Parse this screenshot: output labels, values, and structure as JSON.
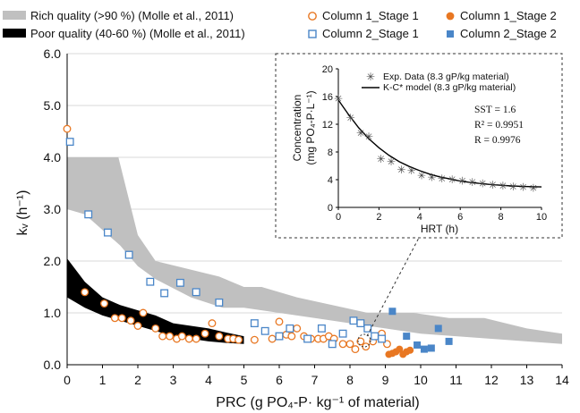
{
  "chart_data": [
    {
      "type": "scatter",
      "xlabel": "PRC (g PO₄-P· kg⁻¹ of material)",
      "ylabel": "kᵥ (h⁻¹)",
      "xlim": [
        0,
        14
      ],
      "ylim": [
        0,
        6
      ],
      "xticks": [
        "0",
        "1",
        "2",
        "3",
        "4",
        "5",
        "6",
        "7",
        "8",
        "9",
        "10",
        "11",
        "12",
        "13",
        "14"
      ],
      "yticks": [
        "0.0",
        "1.0",
        "2.0",
        "3.0",
        "4.0",
        "5.0",
        "6.0"
      ],
      "legend_placement": "top",
      "bands": [
        {
          "name": "Rich quality (>90 %) (Molle et al., 2011)",
          "color": "#c0c0c0",
          "upper": [
            [
              0,
              4.0
            ],
            [
              1.45,
              4.0
            ],
            [
              2.0,
              2.5
            ],
            [
              2.5,
              2.0
            ],
            [
              4.3,
              1.7
            ],
            [
              5.0,
              1.5
            ],
            [
              5.5,
              1.5
            ],
            [
              6.5,
              1.3
            ],
            [
              8.5,
              1.0
            ],
            [
              9.8,
              1.0
            ],
            [
              10.8,
              0.9
            ],
            [
              11.8,
              0.9
            ],
            [
              13.0,
              0.7
            ],
            [
              14.0,
              0.6
            ]
          ],
          "lower": [
            [
              14.0,
              0.4
            ],
            [
              13.0,
              0.45
            ],
            [
              12.0,
              0.5
            ],
            [
              11.0,
              0.55
            ],
            [
              10.0,
              0.6
            ],
            [
              9.0,
              0.7
            ],
            [
              8.0,
              0.8
            ],
            [
              7.0,
              0.9
            ],
            [
              6.0,
              1.0
            ],
            [
              5.0,
              1.1
            ],
            [
              4.4,
              1.1
            ],
            [
              3.5,
              1.3
            ],
            [
              2.5,
              1.65
            ],
            [
              2.0,
              1.9
            ],
            [
              1.5,
              2.3
            ],
            [
              1.0,
              2.6
            ],
            [
              0.5,
              2.9
            ],
            [
              0,
              3.0
            ]
          ]
        },
        {
          "name": "Poor quality (40-60 %) (Molle et al., 2011)",
          "color": "#000000",
          "upper": [
            [
              0,
              2.05
            ],
            [
              0.5,
              1.6
            ],
            [
              1.0,
              1.3
            ],
            [
              1.5,
              1.15
            ],
            [
              2.0,
              1.05
            ],
            [
              2.5,
              0.95
            ],
            [
              3.0,
              0.8
            ],
            [
              3.5,
              0.75
            ],
            [
              4.0,
              0.7
            ],
            [
              4.5,
              0.62
            ],
            [
              5.0,
              0.55
            ]
          ],
          "lower": [
            [
              5.0,
              0.4
            ],
            [
              4.5,
              0.42
            ],
            [
              4.0,
              0.45
            ],
            [
              3.5,
              0.5
            ],
            [
              3.0,
              0.55
            ],
            [
              2.5,
              0.65
            ],
            [
              2.0,
              0.75
            ],
            [
              1.5,
              0.85
            ],
            [
              1.0,
              0.95
            ],
            [
              0.5,
              1.1
            ],
            [
              0,
              1.3
            ]
          ]
        }
      ],
      "series": [
        {
          "name": "Column 1_Stage 1",
          "marker": "circle-open",
          "color": "#e87722",
          "x": [
            0.0,
            0.5,
            1.05,
            1.35,
            1.55,
            1.8,
            2.0,
            2.15,
            2.5,
            2.7,
            2.9,
            3.1,
            3.25,
            3.45,
            3.65,
            3.9,
            4.1,
            4.3,
            4.55,
            4.7,
            4.85,
            5.3,
            5.8,
            6.0,
            6.2,
            6.35,
            6.5,
            6.7,
            6.9,
            7.1,
            7.25,
            7.4,
            7.55,
            7.8,
            8.0,
            8.15,
            8.3,
            8.45,
            8.65,
            8.9,
            9.05
          ],
          "y": [
            4.55,
            1.4,
            1.18,
            0.9,
            0.9,
            0.85,
            0.75,
            1.0,
            0.7,
            0.55,
            0.55,
            0.5,
            0.55,
            0.5,
            0.5,
            0.6,
            0.8,
            0.55,
            0.5,
            0.5,
            0.48,
            0.48,
            0.5,
            0.83,
            0.58,
            0.55,
            0.7,
            0.55,
            0.5,
            0.5,
            0.5,
            0.55,
            0.5,
            0.4,
            0.4,
            0.3,
            0.45,
            0.35,
            0.45,
            0.6,
            0.4
          ]
        },
        {
          "name": "Column 1_Stage 2",
          "marker": "circle-filled",
          "color": "#e87722",
          "x": [
            9.1,
            9.2,
            9.3,
            9.4,
            9.5,
            9.6,
            9.7
          ],
          "y": [
            0.2,
            0.22,
            0.25,
            0.3,
            0.2,
            0.25,
            0.28
          ]
        },
        {
          "name": "Column 2_Stage 1",
          "marker": "square-open",
          "color": "#4a86c8",
          "x": [
            0.08,
            0.6,
            1.15,
            1.75,
            2.35,
            2.75,
            3.2,
            3.65,
            4.3,
            5.3,
            5.6,
            6.0,
            6.3,
            6.8,
            7.2,
            7.5,
            7.8,
            8.1,
            8.3,
            8.5,
            8.7,
            8.9
          ],
          "y": [
            4.3,
            2.9,
            2.55,
            2.12,
            1.6,
            1.38,
            1.58,
            1.4,
            1.2,
            0.8,
            0.65,
            0.55,
            0.7,
            0.5,
            0.7,
            0.4,
            0.6,
            0.85,
            0.8,
            0.7,
            0.55,
            0.5
          ]
        },
        {
          "name": "Column 2_Stage 2",
          "marker": "square-filled",
          "color": "#4a86c8",
          "x": [
            9.2,
            9.6,
            9.9,
            10.1,
            10.3,
            10.5,
            10.8
          ],
          "y": [
            1.03,
            0.55,
            0.38,
            0.3,
            0.32,
            0.7,
            0.45
          ]
        }
      ]
    },
    {
      "type": "scatter",
      "xlabel": "HRT (h)",
      "ylabel_line1": "Concentration",
      "ylabel_line2": "(mg PO₄-P·L⁻¹)",
      "xlim": [
        0,
        10
      ],
      "ylim": [
        0,
        20
      ],
      "xticks": [
        "0",
        "2",
        "4",
        "6",
        "8",
        "10"
      ],
      "yticks": [
        "0",
        "4",
        "8",
        "12",
        "16",
        "20"
      ],
      "legend_placement": "top-right",
      "series": [
        {
          "name": "Exp. Data (8.3 gP/kg material)",
          "marker": "asterisk",
          "color": "#444444",
          "x": [
            0.0,
            0.6,
            1.1,
            1.5,
            2.1,
            2.6,
            3.1,
            3.6,
            4.1,
            4.6,
            5.1,
            5.6,
            6.1,
            6.6,
            7.1,
            7.6,
            8.1,
            8.6,
            9.1,
            9.6
          ],
          "y": [
            15.7,
            12.9,
            10.7,
            10.2,
            7.0,
            6.6,
            5.4,
            5.3,
            4.6,
            4.3,
            4.1,
            4.0,
            3.8,
            3.6,
            3.4,
            3.2,
            3.1,
            3.0,
            2.9,
            2.8
          ]
        },
        {
          "name": "K-C* model (8.3 gP/kg material)",
          "marker": "line",
          "color": "#000000",
          "x": [
            0,
            0.5,
            1,
            1.5,
            2,
            2.5,
            3,
            3.5,
            4,
            4.5,
            5,
            5.5,
            6,
            6.5,
            7,
            7.5,
            8,
            8.5,
            9,
            9.5,
            10
          ],
          "y": [
            15.5,
            13.4,
            11.5,
            9.9,
            8.6,
            7.5,
            6.6,
            5.9,
            5.3,
            4.8,
            4.4,
            4.1,
            3.8,
            3.6,
            3.45,
            3.3,
            3.2,
            3.1,
            3.05,
            3.0,
            2.95
          ]
        }
      ],
      "stats": {
        "sst": "SST = 1.6",
        "r2": "R² = 0.9951",
        "r": "R = 0.9976"
      }
    }
  ]
}
